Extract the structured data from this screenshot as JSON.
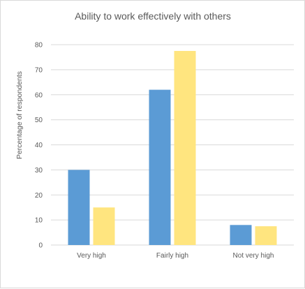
{
  "chart_data": {
    "type": "bar",
    "title": "Ability to work effectively with others",
    "xlabel": "",
    "ylabel": "Percentage of respondents",
    "categories": [
      "Very high",
      "Fairly high",
      "Not very high"
    ],
    "series": [
      {
        "values": [
          30,
          62,
          8
        ],
        "color": "#5b9bd5"
      },
      {
        "values": [
          15,
          77.5,
          7.5
        ],
        "color": "#ffe57f"
      }
    ],
    "ylim": [
      0,
      80
    ],
    "yticks": [
      0,
      10,
      20,
      30,
      40,
      50,
      60,
      70,
      80
    ],
    "grid": true,
    "legend": "none"
  }
}
